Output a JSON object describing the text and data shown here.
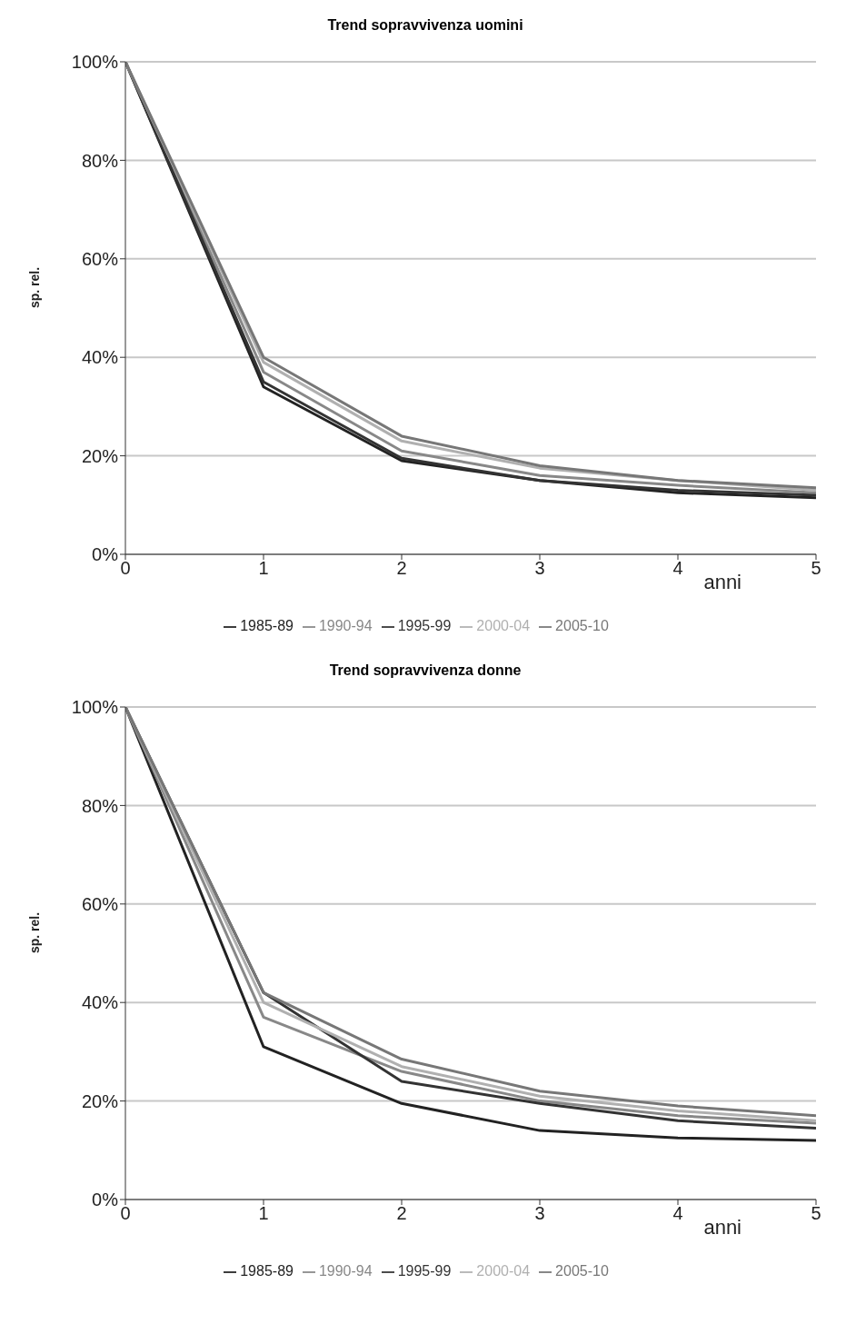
{
  "chart_data": [
    {
      "type": "line",
      "title": "Trend sopravvivenza uomini",
      "xlabel": "anni",
      "ylabel": "sp. rel.",
      "x": [
        0,
        1,
        2,
        3,
        4,
        5
      ],
      "xlim": [
        0,
        5
      ],
      "xticks": [
        0,
        1,
        2,
        3,
        4,
        5
      ],
      "ylim": [
        0,
        100
      ],
      "yticks": [
        {
          "value": 0,
          "label": "0%"
        },
        {
          "value": 20,
          "label": "20%"
        },
        {
          "value": 40,
          "label": "40%"
        },
        {
          "value": 60,
          "label": "60%"
        },
        {
          "value": 80,
          "label": "80%"
        },
        {
          "value": 100,
          "label": "100%"
        }
      ],
      "grid": "y",
      "legend": "bottom",
      "marker": "none",
      "line_style": "solid",
      "series": [
        {
          "name": "1985-89",
          "color": "#222222",
          "values": [
            100,
            34,
            19,
            15,
            12.5,
            11.5
          ]
        },
        {
          "name": "1990-94",
          "color": "#888888",
          "values": [
            100,
            37,
            21,
            16,
            14,
            12.5
          ]
        },
        {
          "name": "1995-99",
          "color": "#333333",
          "values": [
            100,
            35,
            19.5,
            15,
            13,
            12
          ]
        },
        {
          "name": "2000-04",
          "color": "#b0b0b0",
          "values": [
            100,
            39,
            23,
            17.5,
            15,
            13
          ]
        },
        {
          "name": "2005-10",
          "color": "#777777",
          "values": [
            100,
            40,
            24,
            18,
            15,
            13.5
          ]
        }
      ]
    },
    {
      "type": "line",
      "title": "Trend sopravvivenza donne",
      "xlabel": "anni",
      "ylabel": "sp. rel.",
      "x": [
        0,
        1,
        2,
        3,
        4,
        5
      ],
      "xlim": [
        0,
        5
      ],
      "xticks": [
        0,
        1,
        2,
        3,
        4,
        5
      ],
      "ylim": [
        0,
        100
      ],
      "yticks": [
        {
          "value": 0,
          "label": "0%"
        },
        {
          "value": 20,
          "label": "20%"
        },
        {
          "value": 40,
          "label": "40%"
        },
        {
          "value": 60,
          "label": "60%"
        },
        {
          "value": 80,
          "label": "80%"
        },
        {
          "value": 100,
          "label": "100%"
        }
      ],
      "grid": "y",
      "legend": "bottom",
      "marker": "none",
      "line_style": "solid",
      "series": [
        {
          "name": "1985-89",
          "color": "#222222",
          "values": [
            100,
            31,
            19.5,
            14,
            12.5,
            12
          ]
        },
        {
          "name": "1990-94",
          "color": "#888888",
          "values": [
            100,
            37,
            26,
            20,
            17,
            15.5
          ]
        },
        {
          "name": "1995-99",
          "color": "#333333",
          "values": [
            100,
            42,
            24,
            19.5,
            16,
            14.5
          ]
        },
        {
          "name": "2000-04",
          "color": "#b0b0b0",
          "values": [
            100,
            40,
            27,
            21,
            18,
            16
          ]
        },
        {
          "name": "2005-10",
          "color": "#777777",
          "values": [
            100,
            42,
            28.5,
            22,
            19,
            17
          ]
        }
      ]
    }
  ]
}
